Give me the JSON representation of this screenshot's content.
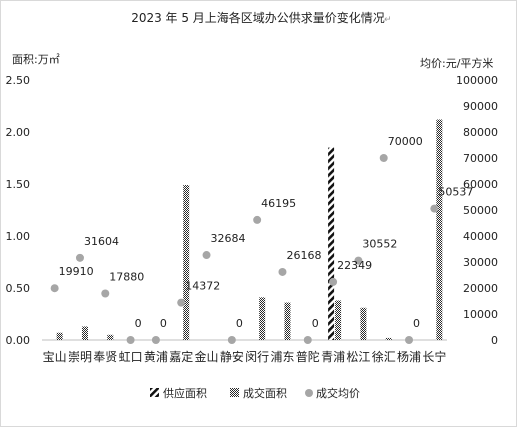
{
  "chart_data": {
    "type": "bar",
    "title": "2023 年 5 月上海各区域办公供求量价变化情况",
    "y_left_label": "面积:万㎡",
    "y_right_label": "均价:元/平方米",
    "categories": [
      "宝山",
      "崇明",
      "奉贤",
      "虹口",
      "黄浦",
      "嘉定",
      "金山",
      "静安",
      "闵行",
      "浦东",
      "普陀",
      "青浦",
      "松江",
      "徐汇",
      "杨浦",
      "长宁"
    ],
    "y_left_ticks": [
      "0.00",
      "0.50",
      "1.00",
      "1.50",
      "2.00",
      "2.50"
    ],
    "y_right_ticks": [
      "0",
      "10000",
      "20000",
      "30000",
      "40000",
      "50000",
      "60000",
      "70000",
      "80000",
      "90000",
      "100000"
    ],
    "y_left_range": [
      0,
      2.5
    ],
    "y_right_range": [
      0,
      100000
    ],
    "series": [
      {
        "name": "供应面积",
        "axis": "left",
        "style": "hatched-diagonal",
        "values": [
          0,
          0,
          0,
          0,
          0,
          0,
          0,
          0,
          0,
          0,
          0,
          1.85,
          0,
          0,
          0,
          0
        ]
      },
      {
        "name": "成交面积",
        "axis": "left",
        "style": "hatched-dense",
        "values": [
          0.07,
          0.13,
          0.05,
          0,
          0,
          1.49,
          0,
          0,
          0.41,
          0.36,
          0,
          0.38,
          0.31,
          0.02,
          0,
          2.12
        ]
      },
      {
        "name": "成交均价",
        "axis": "right",
        "style": "dot",
        "values": [
          19910,
          31604,
          17880,
          0,
          0,
          14372,
          32684,
          0,
          46195,
          26168,
          0,
          22349,
          30552,
          70000,
          0,
          50537
        ],
        "labels": [
          "19910",
          "31604",
          "17880",
          "0",
          "0",
          "14372",
          "32684",
          "0",
          "46195",
          "26168",
          "0",
          "22349",
          "30552",
          "70000",
          "0",
          "50537"
        ]
      }
    ],
    "legend_position": "bottom",
    "grid": false
  }
}
